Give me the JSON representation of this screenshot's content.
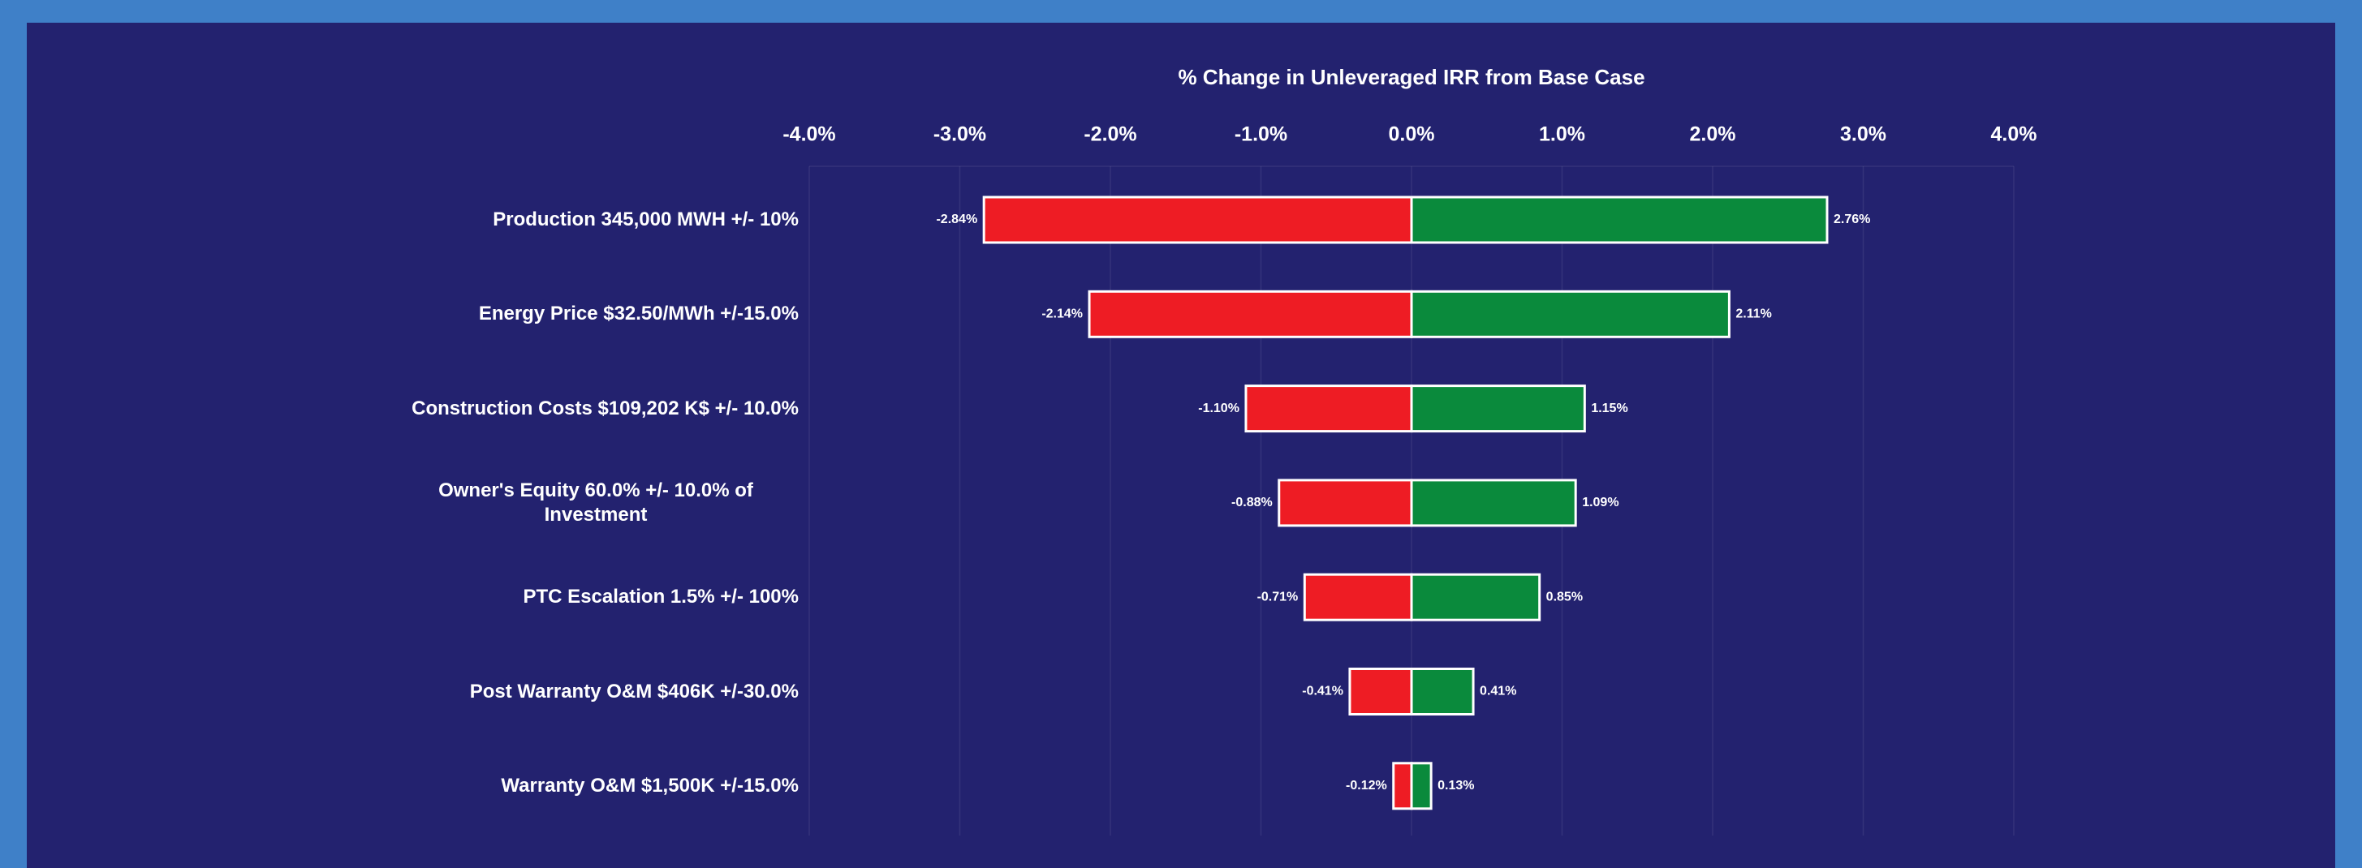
{
  "chart_data": {
    "type": "tornado",
    "title": "% Change in Unleveraged IRR from Base Case",
    "categories": [
      "Production 345,000 MWH +/- 10%",
      "Energy Price $32.50/MWh +/-15.0%",
      "Construction Costs $109,202 K$ +/- 10.0%",
      "Owner's Equity 60.0% +/- 10.0% of Investment",
      "PTC Escalation 1.5% +/- 100%",
      "Post Warranty O&M $406K +/-30.0%",
      "Warranty O&M $1,500K +/-15.0%"
    ],
    "series": [
      {
        "color": "#ee1c24",
        "values": [
          -2.84,
          -2.14,
          -1.1,
          -0.88,
          -0.71,
          -0.41,
          -0.12
        ],
        "value_labels": [
          "-2.84%",
          "-2.14%",
          "-1.10%",
          "-0.88%",
          "-0.71%",
          "-0.41%",
          "-0.12%"
        ]
      },
      {
        "color": "#0a8a3c",
        "values": [
          2.76,
          2.11,
          1.15,
          1.09,
          0.85,
          0.41,
          0.13
        ],
        "value_labels": [
          "2.76%",
          "2.11%",
          "1.15%",
          "1.09%",
          "0.85%",
          "0.41%",
          "0.13%"
        ]
      }
    ],
    "xlim": [
      -4,
      4
    ],
    "xticks": [
      {
        "value": -4,
        "label": "-4.0%"
      },
      {
        "value": -3,
        "label": "-3.0%"
      },
      {
        "value": -2,
        "label": "-2.0%"
      },
      {
        "value": -1,
        "label": "-1.0%"
      },
      {
        "value": 0,
        "label": "0.0%"
      },
      {
        "value": 1,
        "label": "1.0%"
      },
      {
        "value": 2,
        "label": "2.0%"
      },
      {
        "value": 3,
        "label": "3.0%"
      },
      {
        "value": 4,
        "label": "4.0%"
      }
    ],
    "grid": true
  }
}
